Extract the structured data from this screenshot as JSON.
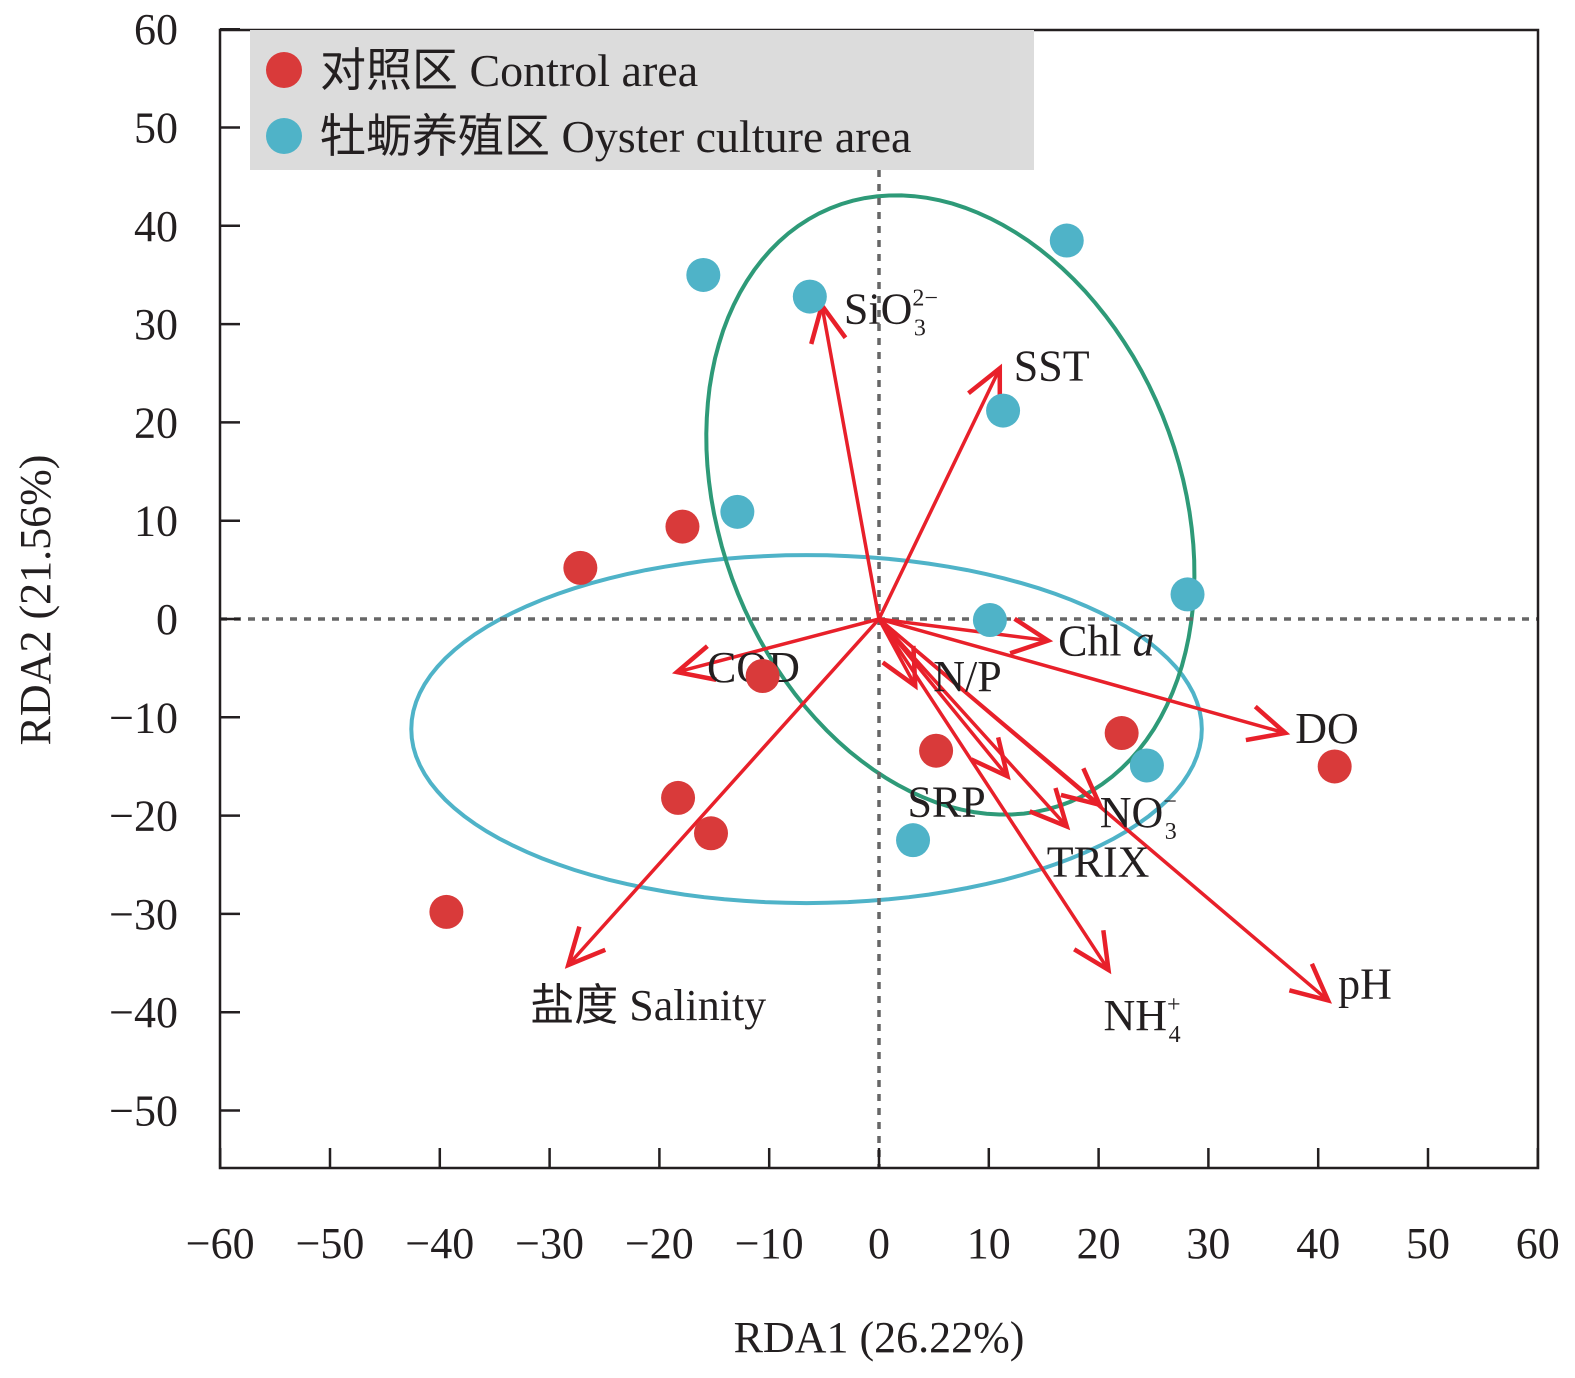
{
  "chart_data": {
    "type": "scatter",
    "subtype": "RDA biplot",
    "xlabel": "RDA1 (26.22%)",
    "ylabel": "RDA2 (21.56%)",
    "xlim": [
      -60,
      60
    ],
    "ylim": [
      -55,
      60
    ],
    "xticks": [
      -60,
      -50,
      -40,
      -30,
      -20,
      -10,
      0,
      10,
      20,
      30,
      40,
      50,
      60
    ],
    "yticks": [
      60,
      50,
      40,
      30,
      20,
      10,
      0,
      -10,
      -20,
      -30,
      -40,
      -50
    ],
    "xtick_labels": [
      "−60",
      "−50",
      "−40",
      "−30",
      "−20",
      "−10",
      "0",
      "10",
      "20",
      "30",
      "40",
      "50",
      "60"
    ],
    "ytick_labels": [
      "60",
      "50",
      "40",
      "30",
      "20",
      "10",
      "0",
      "−10",
      "−20",
      "−30",
      "−40",
      "−50"
    ],
    "grid": false,
    "zero_lines": "dashed",
    "legend_position": "top-left",
    "series": [
      {
        "name": "对照区 Control area",
        "color": "#d93a3a",
        "points": [
          [
            -17.9,
            9.4
          ],
          [
            -27.2,
            5.2
          ],
          [
            -10.6,
            -5.8
          ],
          [
            5.2,
            -13.4
          ],
          [
            22.1,
            -11.6
          ],
          [
            41.5,
            -15.0
          ],
          [
            -18.3,
            -18.2
          ],
          [
            -15.3,
            -21.8
          ],
          [
            -39.4,
            -29.8
          ]
        ],
        "ellipse": {
          "center": [
            -6.6,
            -11.2
          ],
          "semi_major": 36.0,
          "semi_minor": 17.7,
          "angle_deg": 0,
          "color": "#4fb3c8"
        }
      },
      {
        "name": "牡蛎养殖区 Oyster culture area",
        "color": "#4fb3c8",
        "points": [
          [
            -16.0,
            35.0
          ],
          [
            -6.3,
            32.8
          ],
          [
            17.1,
            38.5
          ],
          [
            11.3,
            21.2
          ],
          [
            -12.9,
            10.9
          ],
          [
            10.1,
            -0.1
          ],
          [
            28.1,
            2.5
          ],
          [
            24.4,
            -14.9
          ],
          [
            3.1,
            -22.5
          ]
        ],
        "ellipse": {
          "center": [
            6.5,
            11.6
          ],
          "semi_major": 32.2,
          "semi_minor": 21.2,
          "angle_deg": -74,
          "color": "#2e9a78"
        }
      }
    ],
    "vectors": {
      "color": "#e8202a",
      "items": [
        {
          "label": "SiO",
          "sub": "3",
          "sup": "2−",
          "italic": "",
          "x": -5.2,
          "y": 31.9
        },
        {
          "label": "SST",
          "sub": "",
          "sup": "",
          "italic": "",
          "x": 11.0,
          "y": 25.5
        },
        {
          "label": "Chl ",
          "sub": "",
          "sup": "",
          "italic": "a",
          "x": 15.4,
          "y": -2.2
        },
        {
          "label": "DO",
          "sub": "",
          "sup": "",
          "italic": "",
          "x": 37.0,
          "y": -11.6
        },
        {
          "label": "pH",
          "sub": "",
          "sup": "",
          "italic": "",
          "x": 40.9,
          "y": -38.8
        },
        {
          "label": "NH",
          "sub": "4",
          "sup": "+",
          "italic": "",
          "x": 20.9,
          "y": -35.7
        },
        {
          "label": "NO",
          "sub": "3",
          "sup": "−",
          "italic": "",
          "x": 20.1,
          "y": -18.9
        },
        {
          "label": "TRIX",
          "sub": "",
          "sup": "",
          "italic": "",
          "x": 17.1,
          "y": -21.1
        },
        {
          "label": "SRP",
          "sub": "",
          "sup": "",
          "italic": "",
          "x": 11.7,
          "y": -16.0
        },
        {
          "label": "N/P",
          "sub": "",
          "sup": "",
          "italic": "",
          "x": 3.3,
          "y": -6.8
        },
        {
          "label": "COD",
          "sub": "",
          "sup": "",
          "italic": "",
          "x": -18.4,
          "y": -5.4
        },
        {
          "label": "盐度  Salinity",
          "sub": "",
          "sup": "",
          "italic": "",
          "x": -28.3,
          "y": -35.2
        }
      ]
    }
  }
}
